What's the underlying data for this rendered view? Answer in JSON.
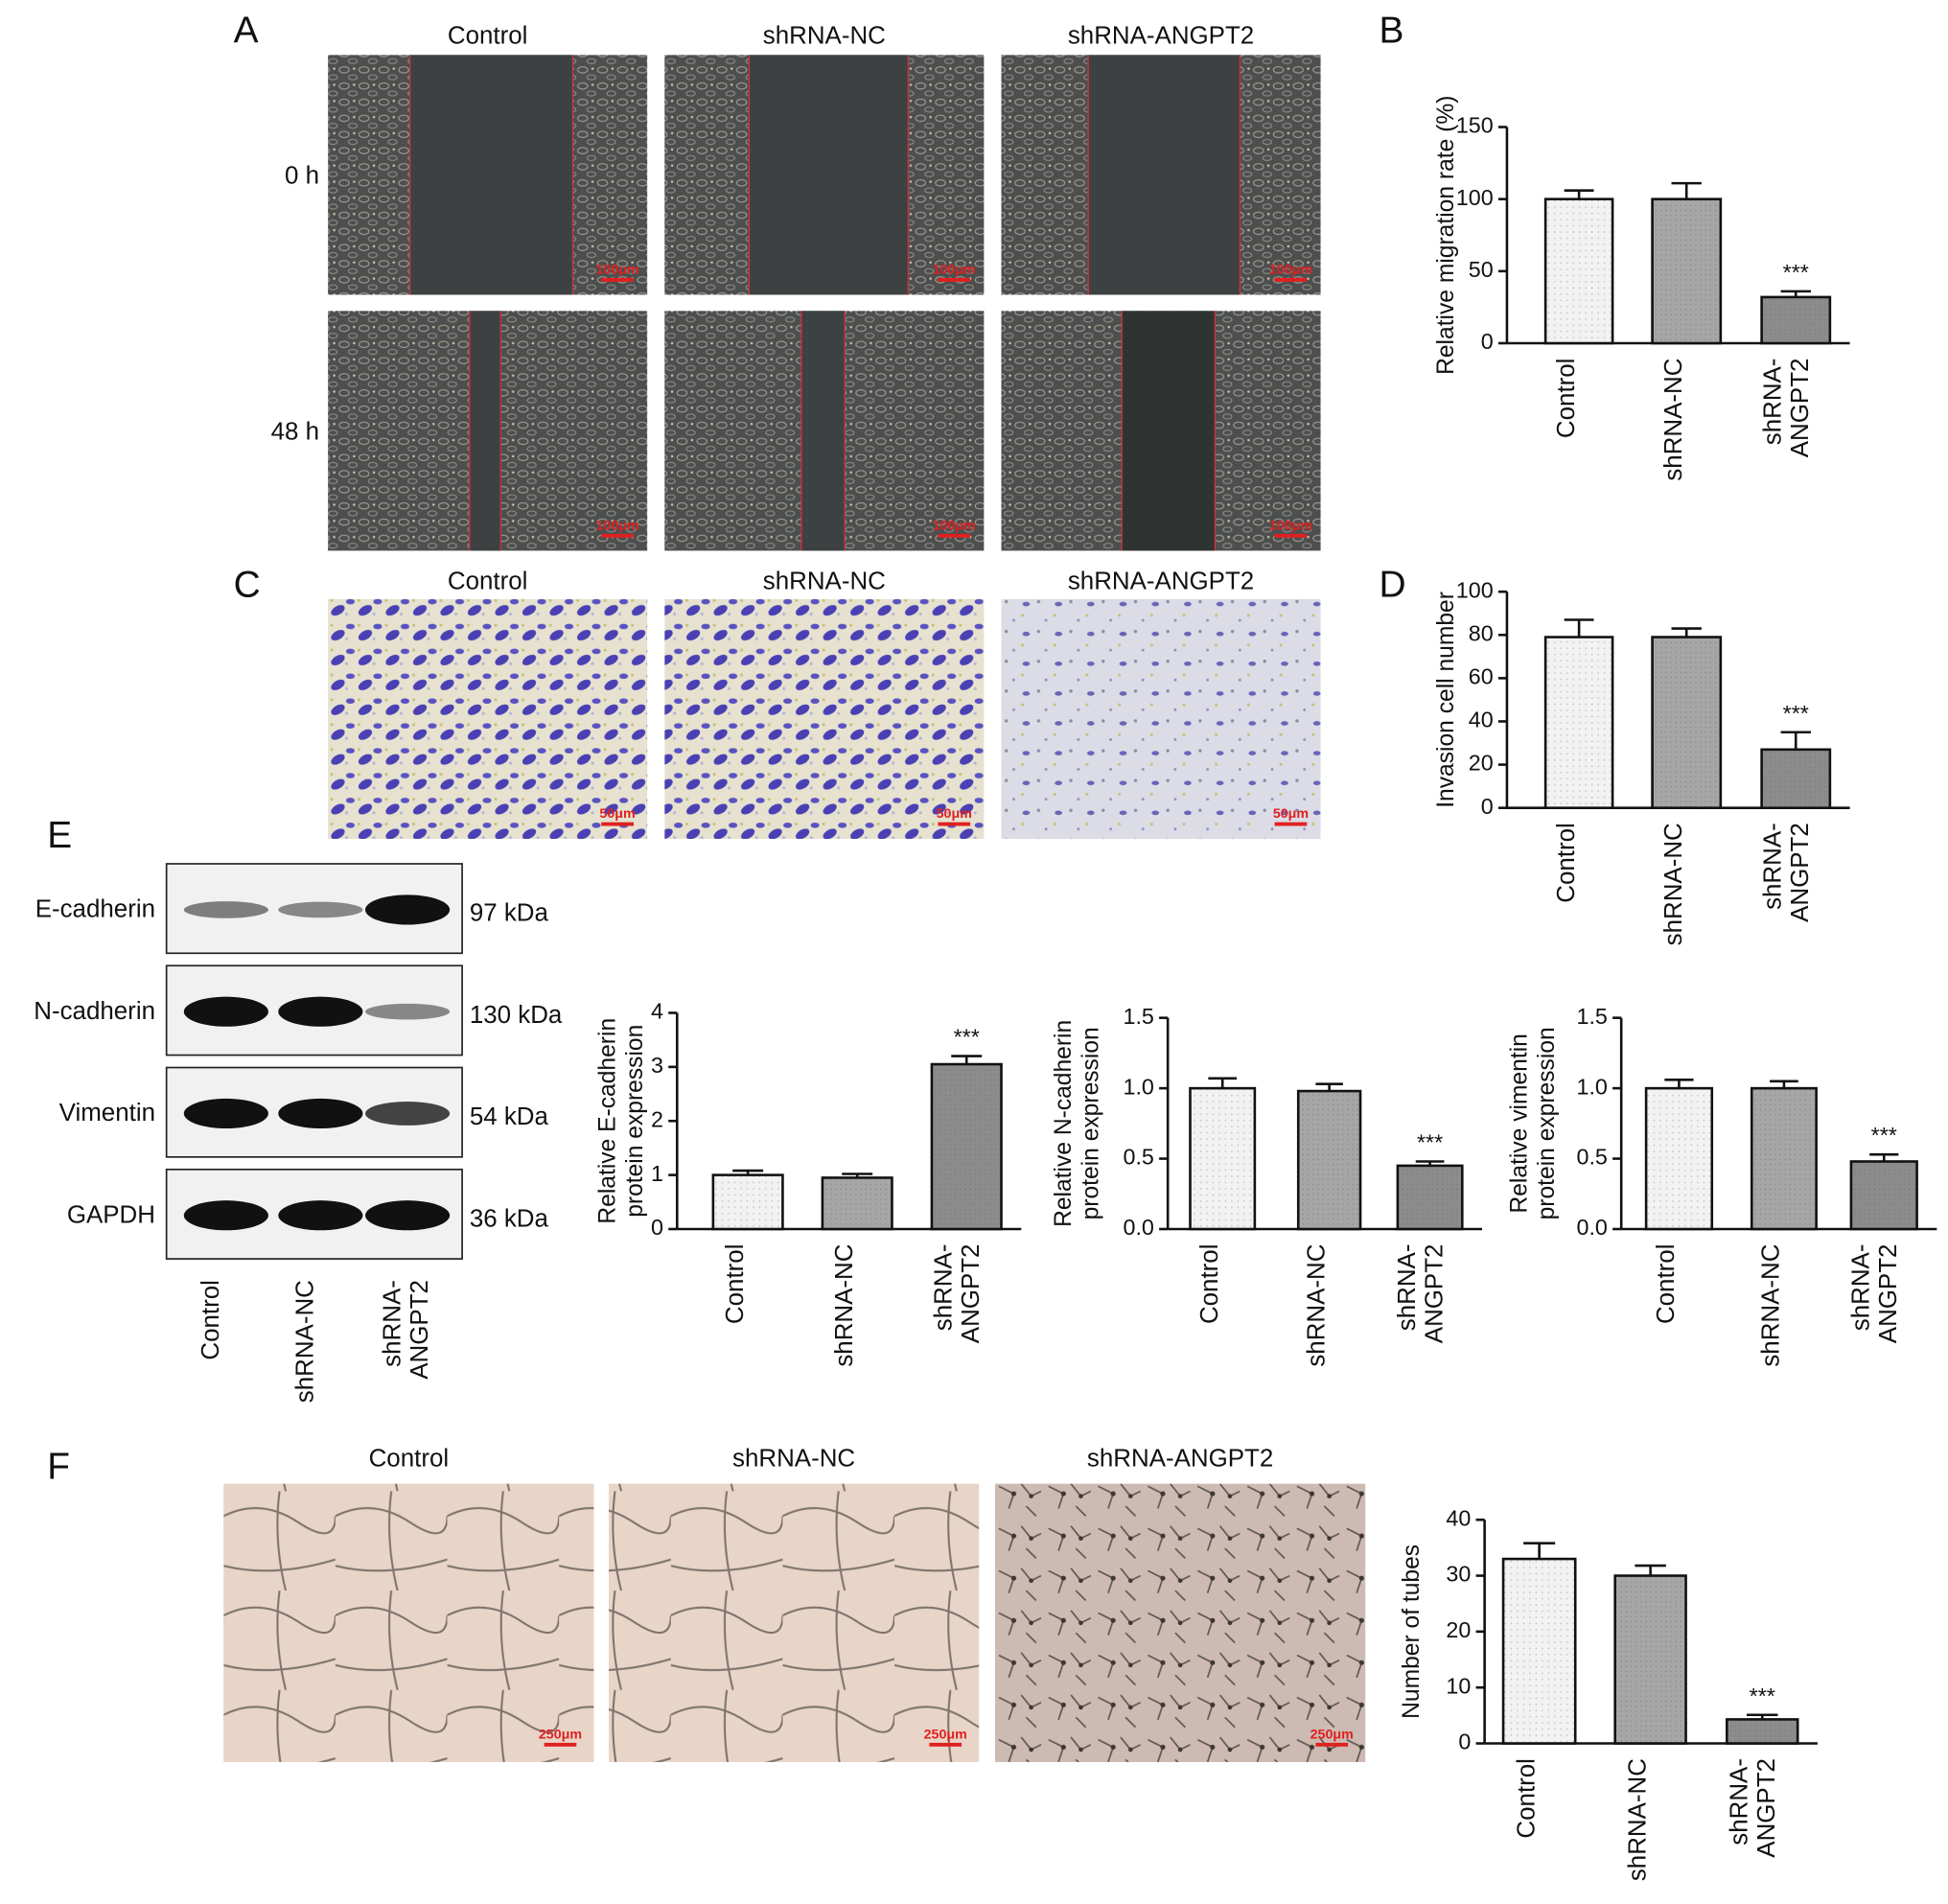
{
  "panel_labels": [
    "A",
    "B",
    "C",
    "D",
    "E",
    "F"
  ],
  "panel_a": {
    "columns": [
      "Control",
      "shRNA-NC",
      "shRNA-ANGPT2"
    ],
    "rows": [
      "0 h",
      "48 h"
    ],
    "scale_bar": "100μm"
  },
  "panel_c": {
    "columns": [
      "Control",
      "shRNA-NC",
      "shRNA-ANGPT2"
    ],
    "scale_bar": "50μm"
  },
  "panel_e_blot": {
    "proteins": [
      {
        "name": "E-cadherin",
        "size": "97 kDa"
      },
      {
        "name": "N-cadherin",
        "size": "130 kDa"
      },
      {
        "name": "Vimentin",
        "size": "54 kDa"
      },
      {
        "name": "GAPDH",
        "size": "36 kDa"
      }
    ],
    "lanes": [
      "Control",
      "shRNA-NC",
      "shRNA-ANGPT2"
    ]
  },
  "panel_f": {
    "columns": [
      "Control",
      "shRNA-NC",
      "shRNA-ANGPT2"
    ],
    "scale_bar": "250μm"
  },
  "chart_data": [
    {
      "type": "bar",
      "ylabel": [
        "Relative migration rate (%)"
      ],
      "categories": [
        "Control",
        "shRNA-NC",
        "shRNA-ANGPT2"
      ],
      "values": [
        100,
        100,
        32
      ],
      "errors": [
        6,
        11,
        4
      ],
      "colors": [
        "#f2f2f2",
        "#a6a6a6",
        "#8c8c8c"
      ],
      "ylim": [
        0,
        150
      ],
      "yticks": [
        0,
        50,
        100,
        150
      ],
      "annotations": [
        {
          "text": "***",
          "category": "shRNA-ANGPT2"
        }
      ]
    },
    {
      "type": "bar",
      "ylabel": [
        "Invasion cell number"
      ],
      "categories": [
        "Control",
        "shRNA-NC",
        "shRNA-ANGPT2"
      ],
      "values": [
        79,
        79,
        27
      ],
      "errors": [
        8,
        4,
        8
      ],
      "colors": [
        "#f2f2f2",
        "#a6a6a6",
        "#8c8c8c"
      ],
      "ylim": [
        0,
        100
      ],
      "yticks": [
        0,
        20,
        40,
        60,
        80,
        100
      ],
      "annotations": [
        {
          "text": "***",
          "category": "shRNA-ANGPT2"
        }
      ]
    },
    {
      "type": "bar",
      "ylabel": [
        "Relative E-cadherin",
        "protein expression"
      ],
      "categories": [
        "Control",
        "shRNA-NC",
        "shRNA-ANGPT2"
      ],
      "values": [
        1.0,
        0.95,
        3.05
      ],
      "errors": [
        0.08,
        0.07,
        0.15
      ],
      "colors": [
        "#f2f2f2",
        "#a6a6a6",
        "#8c8c8c"
      ],
      "ylim": [
        0,
        4
      ],
      "yticks": [
        0,
        1,
        2,
        3,
        4
      ],
      "annotations": [
        {
          "text": "***",
          "category": "shRNA-ANGPT2"
        }
      ]
    },
    {
      "type": "bar",
      "ylabel": [
        "Relative N-cadherin",
        "protein expression"
      ],
      "categories": [
        "Control",
        "shRNA-NC",
        "shRNA-ANGPT2"
      ],
      "values": [
        1.0,
        0.98,
        0.45
      ],
      "errors": [
        0.07,
        0.05,
        0.03
      ],
      "colors": [
        "#f2f2f2",
        "#a6a6a6",
        "#8c8c8c"
      ],
      "ylim": [
        0,
        1.5
      ],
      "yticks": [
        {
          "value": 0,
          "label": "0.0"
        },
        {
          "value": 0.5,
          "label": "0.5"
        },
        {
          "value": 1,
          "label": "1.0"
        },
        {
          "value": 1.5,
          "label": "1.5"
        }
      ],
      "annotations": [
        {
          "text": "***",
          "category": "shRNA-ANGPT2"
        }
      ]
    },
    {
      "type": "bar",
      "ylabel": [
        "Relative vimentin",
        "protein expression"
      ],
      "categories": [
        "Control",
        "shRNA-NC",
        "shRNA-ANGPT2"
      ],
      "values": [
        1.0,
        1.0,
        0.48
      ],
      "errors": [
        0.06,
        0.05,
        0.05
      ],
      "colors": [
        "#f2f2f2",
        "#a6a6a6",
        "#8c8c8c"
      ],
      "ylim": [
        0,
        1.5
      ],
      "yticks": [
        {
          "value": 0,
          "label": "0.0"
        },
        {
          "value": 0.5,
          "label": "0.5"
        },
        {
          "value": 1,
          "label": "1.0"
        },
        {
          "value": 1.5,
          "label": "1.5"
        }
      ],
      "annotations": [
        {
          "text": "***",
          "category": "shRNA-ANGPT2"
        }
      ]
    },
    {
      "type": "bar",
      "ylabel": [
        "Number of tubes"
      ],
      "categories": [
        "Control",
        "shRNA-NC",
        "shRNA-ANGPT2"
      ],
      "values": [
        33,
        30,
        4.3
      ],
      "errors": [
        2.8,
        1.8,
        0.8
      ],
      "colors": [
        "#f2f2f2",
        "#a6a6a6",
        "#8c8c8c"
      ],
      "ylim": [
        0,
        40
      ],
      "yticks": [
        0,
        10,
        20,
        30,
        40
      ],
      "annotations": [
        {
          "text": "***",
          "category": "shRNA-ANGPT2"
        }
      ]
    }
  ]
}
